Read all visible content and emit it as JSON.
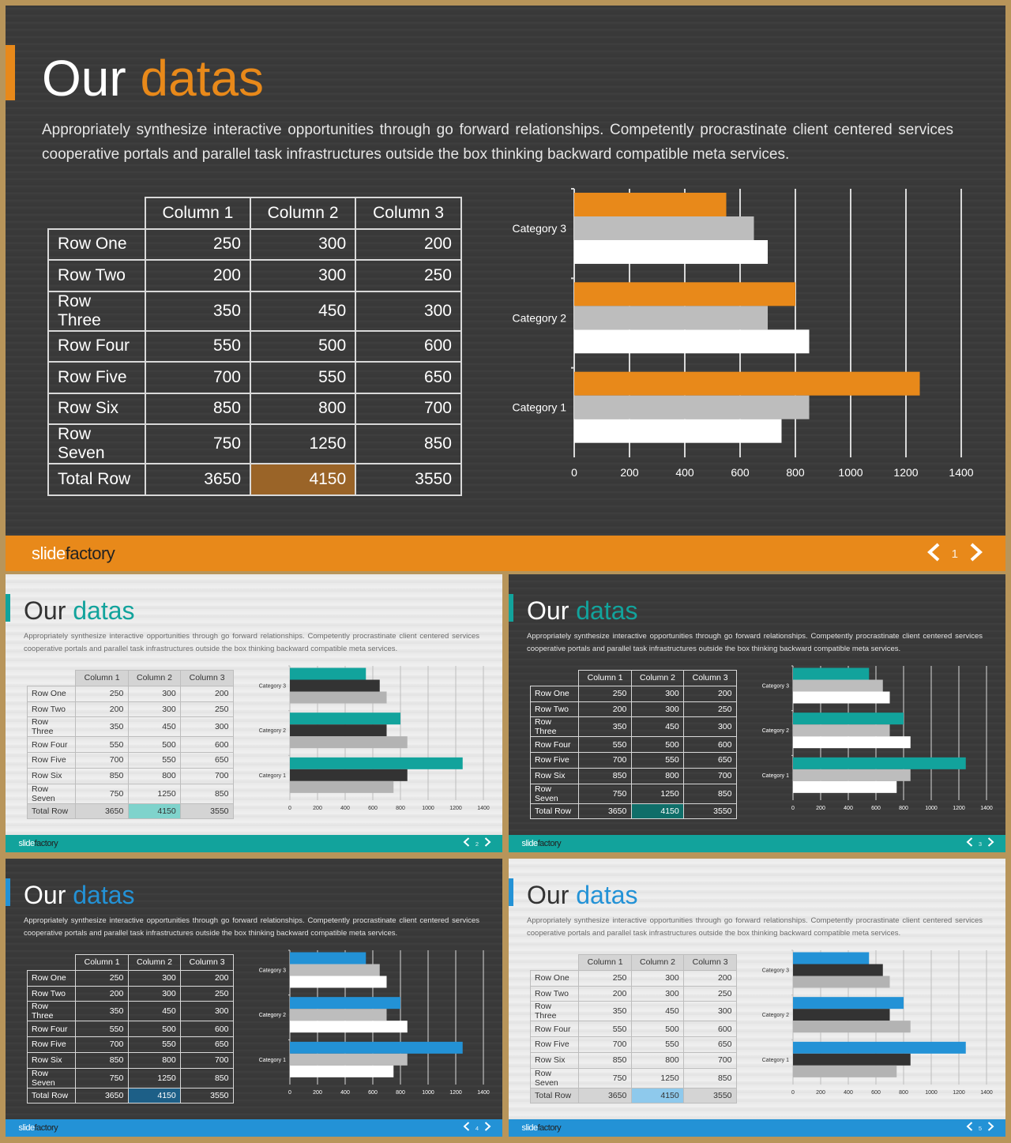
{
  "heading": {
    "word1": "Our",
    "word2": "datas"
  },
  "description": "Appropriately synthesize interactive opportunities through go forward relationships. Competently procrastinate client centered services cooperative portals and parallel task infrastructures outside the box thinking backward compatible meta services.",
  "table": {
    "headers": [
      "Column 1",
      "Column 2",
      "Column 3"
    ],
    "rows": [
      {
        "label": "Row One",
        "values": [
          "250",
          "300",
          "200"
        ]
      },
      {
        "label": "Row Two",
        "values": [
          "200",
          "300",
          "250"
        ]
      },
      {
        "label": "Row Three",
        "values": [
          "350",
          "450",
          "300"
        ]
      },
      {
        "label": "Row Four",
        "values": [
          "550",
          "500",
          "600"
        ]
      },
      {
        "label": "Row Five",
        "values": [
          "700",
          "550",
          "650"
        ]
      },
      {
        "label": "Row Six",
        "values": [
          "850",
          "800",
          "700"
        ]
      },
      {
        "label": "Row Seven",
        "values": [
          "750",
          "1250",
          "850"
        ]
      },
      {
        "label": "Total Row",
        "values": [
          "3650",
          "4150",
          "3550"
        ]
      }
    ]
  },
  "chart_data": {
    "type": "bar",
    "orientation": "horizontal",
    "categories": [
      "Category 1",
      "Category 2",
      "Category 3"
    ],
    "series": [
      {
        "values": [
          1250,
          800,
          550
        ]
      },
      {
        "values": [
          850,
          700,
          650
        ]
      },
      {
        "values": [
          750,
          850,
          700
        ]
      }
    ],
    "xlim": [
      0,
      1400
    ],
    "xticks": [
      "0",
      "200",
      "400",
      "600",
      "800",
      "1000",
      "1200",
      "1400"
    ],
    "grid": true,
    "legend": "none"
  },
  "brand": {
    "part1": "slide",
    "part2": "factory"
  },
  "slides": [
    {
      "page": "1",
      "theme": "dark",
      "accent": "#e8891a",
      "highlight": "#9a6428",
      "series_colors": [
        "#e8891a",
        "#bdbdbd",
        "#ffffff"
      ]
    },
    {
      "page": "2",
      "theme": "light",
      "accent": "#12a39c",
      "highlight": "#7fd3cc",
      "series_colors": [
        "#12a39c",
        "#333333",
        "#b3b3b3"
      ]
    },
    {
      "page": "3",
      "theme": "dark",
      "accent": "#12a39c",
      "highlight": "#0f6e69",
      "series_colors": [
        "#12a39c",
        "#bdbdbd",
        "#ffffff"
      ]
    },
    {
      "page": "4",
      "theme": "dark",
      "accent": "#2392d6",
      "highlight": "#1d5f87",
      "series_colors": [
        "#2392d6",
        "#bdbdbd",
        "#ffffff"
      ]
    },
    {
      "page": "5",
      "theme": "light",
      "accent": "#2392d6",
      "highlight": "#8ec9ec",
      "series_colors": [
        "#2392d6",
        "#333333",
        "#b3b3b3"
      ]
    }
  ]
}
